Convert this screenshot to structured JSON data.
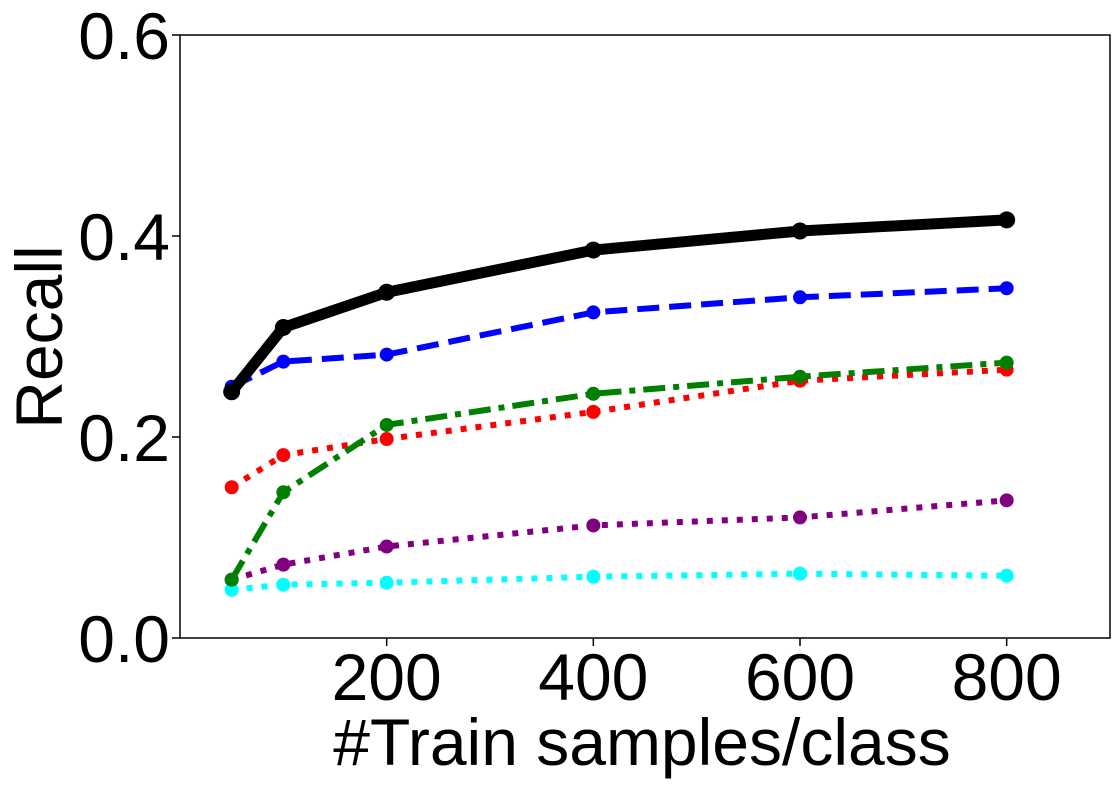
{
  "chart_data": {
    "type": "line",
    "title": "",
    "xlabel": "#Train samples/class",
    "ylabel": "Recall",
    "xlim": [
      0,
      900
    ],
    "ylim": [
      0,
      0.6
    ],
    "xticks": [
      200,
      400,
      600,
      800
    ],
    "yticks": [
      0.0,
      0.2,
      0.4,
      0.6
    ],
    "xtick_labels": [
      "200",
      "400",
      "600",
      "800"
    ],
    "ytick_labels": [
      "0.0",
      "0.2",
      "0.4",
      "0.6"
    ],
    "grid": false,
    "legend": "none",
    "x": [
      50,
      100,
      200,
      400,
      600,
      800
    ],
    "series": [
      {
        "color": "#ff0000",
        "style": "dotted",
        "values": [
          0.15,
          0.182,
          0.198,
          0.225,
          0.256,
          0.267
        ]
      },
      {
        "color": "#800080",
        "style": "dotted",
        "values": [
          0.058,
          0.073,
          0.091,
          0.112,
          0.12,
          0.137
        ]
      },
      {
        "color": "#00ffff",
        "style": "dotted",
        "values": [
          0.048,
          0.053,
          0.055,
          0.061,
          0.064,
          0.062
        ]
      },
      {
        "color": "#008000",
        "style": "dashdot",
        "values": [
          0.058,
          0.145,
          0.212,
          0.243,
          0.26,
          0.274
        ]
      },
      {
        "color": "#0000ff",
        "style": "dashed",
        "values": [
          0.25,
          0.275,
          0.282,
          0.324,
          0.339,
          0.348
        ]
      },
      {
        "color": "#000000",
        "style": "solid",
        "values": [
          0.245,
          0.309,
          0.344,
          0.386,
          0.405,
          0.416
        ]
      }
    ]
  }
}
